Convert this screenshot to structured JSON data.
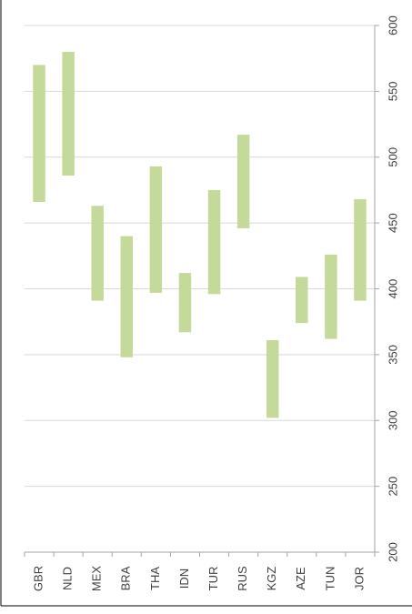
{
  "chart_data": {
    "type": "bar",
    "subtype": "floating-range",
    "orientation": "rotated",
    "categories": [
      "GBR",
      "NLD",
      "MEX",
      "BRA",
      "THA",
      "IDN",
      "TUR",
      "RUS",
      "KGZ",
      "AZE",
      "TUN",
      "JOR"
    ],
    "series": [
      {
        "low": [
          466,
          486,
          391,
          348,
          397,
          367,
          396,
          446,
          302,
          374,
          362,
          391
        ],
        "high": [
          570,
          580,
          463,
          440,
          493,
          412,
          475,
          517,
          361,
          409,
          426,
          468
        ]
      }
    ],
    "value_axis": {
      "range": [
        200,
        600
      ],
      "ticks": [
        200,
        250,
        300,
        350,
        400,
        450,
        500,
        550,
        600
      ]
    },
    "grid": true,
    "bar_color": "#c5d99a"
  }
}
